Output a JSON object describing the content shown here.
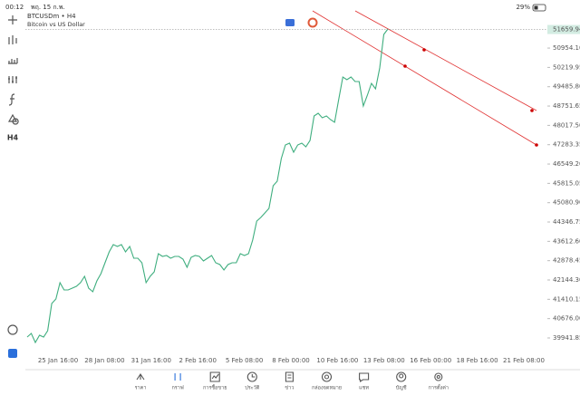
{
  "status_bar": {
    "time": "00:12",
    "date": "พฤ. 15 ก.พ.",
    "battery": "29%"
  },
  "toolbar": {
    "timeframe": "H4"
  },
  "chart_data": {
    "type": "line",
    "title": "BTCUSDm • H4",
    "subtitle": "Bitcoin vs US Dollar",
    "color": "#3fae7f",
    "current_price": 51659.94,
    "values": [
      39976,
      40114,
      39770,
      40045,
      39976,
      40217,
      41250,
      41422,
      42042,
      41766,
      41766,
      41835,
      41904,
      42042,
      42282,
      41835,
      41697,
      42110,
      42386,
      42799,
      43212,
      43487,
      43418,
      43487,
      43212,
      43418,
      42971,
      42971,
      42799,
      42042,
      42282,
      42454,
      43143,
      43040,
      43074,
      42971,
      43040,
      43040,
      42936,
      42627,
      43005,
      43074,
      43040,
      42867,
      42971,
      43074,
      42799,
      42730,
      42523,
      42730,
      42799,
      42799,
      43143,
      43074,
      43143,
      43659,
      44382,
      44520,
      44692,
      44864,
      45724,
      45897,
      46757,
      47273,
      47342,
      46998,
      47273,
      47342,
      47204,
      47445,
      48375,
      48478,
      48306,
      48375,
      48237,
      48134,
      48994,
      49855,
      49751,
      49855,
      49683,
      49683,
      48753,
      49166,
      49614,
      49408,
      50199,
      51473,
      51680
    ],
    "ylim": [
      39356.7,
      52367.5
    ],
    "yticks": [
      {
        "value": 50954.1,
        "label": "50954.10"
      },
      {
        "value": 50219.95,
        "label": "50219.95"
      },
      {
        "value": 49485.8,
        "label": "49485.80"
      },
      {
        "value": 48751.65,
        "label": "48751.65"
      },
      {
        "value": 48017.5,
        "label": "48017.50"
      },
      {
        "value": 47283.35,
        "label": "47283.35"
      },
      {
        "value": 46549.2,
        "label": "46549.20"
      },
      {
        "value": 45815.05,
        "label": "45815.05"
      },
      {
        "value": 45080.9,
        "label": "45080.90"
      },
      {
        "value": 44346.75,
        "label": "44346.75"
      },
      {
        "value": 43612.6,
        "label": "43612.60"
      },
      {
        "value": 42878.45,
        "label": "42878.45"
      },
      {
        "value": 42144.3,
        "label": "42144.30"
      },
      {
        "value": 41410.15,
        "label": "41410.15"
      },
      {
        "value": 40676.0,
        "label": "40676.00"
      },
      {
        "value": 39941.85,
        "label": "39941.85"
      }
    ],
    "x_labels": [
      "25 Jan 16:00",
      "28 Jan 08:00",
      "31 Jan 16:00",
      "2 Feb 16:00",
      "5 Feb 08:00",
      "8 Feb 00:00",
      "10 Feb 16:00",
      "13 Feb 08:00",
      "16 Feb 00:00",
      "18 Feb 16:00",
      "21 Feb 08:00"
    ]
  },
  "nav": [
    "ราคา",
    "กราฟ",
    "การซื้อขาย",
    "ประวัติ",
    "ข่าว",
    "กล่องจดหมาย",
    "แชท",
    "บัญชี",
    "การตั้งค่า"
  ],
  "nav_active": 1
}
